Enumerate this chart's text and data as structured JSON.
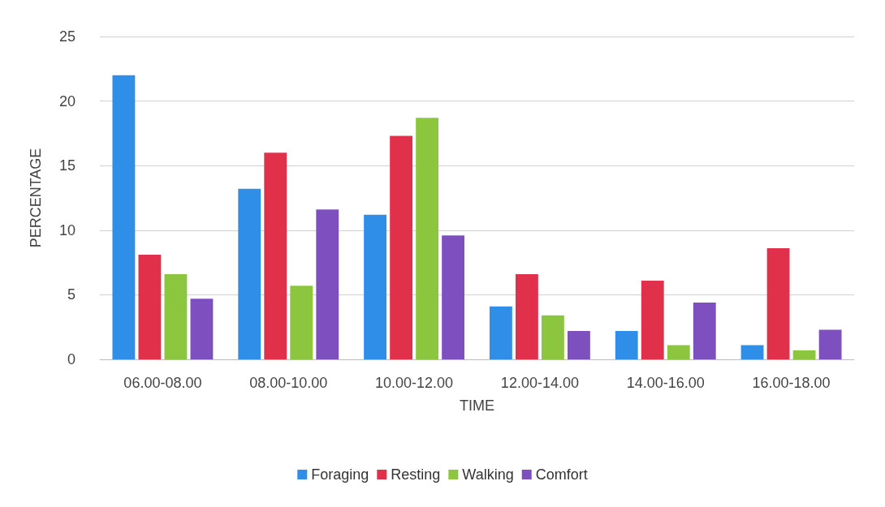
{
  "chart_data": {
    "type": "bar",
    "xlabel": "TIME",
    "ylabel": "PERCENTAGE",
    "categories": [
      "06.00-08.00",
      "08.00-10.00",
      "10.00-12.00",
      "12.00-14.00",
      "14.00-16.00",
      "16.00-18.00"
    ],
    "series": [
      {
        "name": "Foraging",
        "color": "#2e8ee8",
        "values": [
          22,
          13.2,
          11.2,
          4.1,
          2.2,
          1.1
        ]
      },
      {
        "name": "Resting",
        "color": "#e0304a",
        "values": [
          8.1,
          16,
          17.3,
          6.6,
          6.1,
          8.6
        ]
      },
      {
        "name": "Walking",
        "color": "#8cc63f",
        "values": [
          6.6,
          5.7,
          18.7,
          3.4,
          1.1,
          0.7
        ]
      },
      {
        "name": "Comfort",
        "color": "#7e4fbf",
        "values": [
          4.7,
          11.6,
          9.6,
          2.2,
          4.4,
          2.3
        ]
      }
    ],
    "ylim": [
      0,
      25
    ],
    "yticks": [
      0,
      5,
      10,
      15,
      20,
      25
    ],
    "grid": "y",
    "legend": "bottom"
  }
}
